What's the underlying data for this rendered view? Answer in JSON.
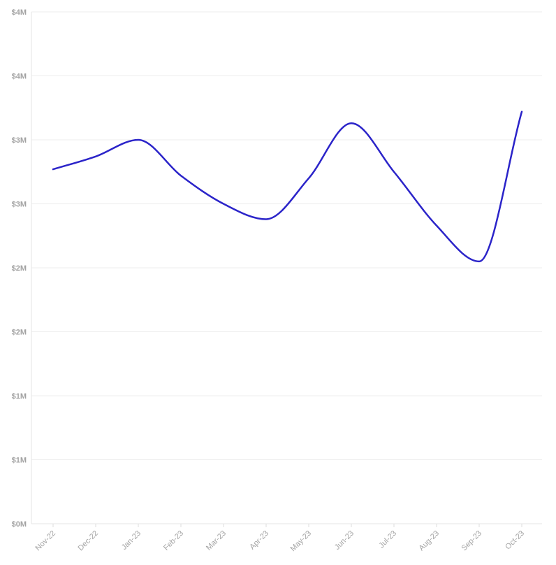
{
  "chart_data": {
    "type": "line",
    "x": [
      "Nov-22",
      "Dec-22",
      "Jan-23",
      "Feb-23",
      "Mar-23",
      "Apr-23",
      "May-23",
      "Jun-23",
      "Jul-23",
      "Aug-23",
      "Sep-23",
      "Oct-23"
    ],
    "series": [
      {
        "values": [
          2770000,
          2870000,
          3000000,
          2720000,
          2500000,
          2380000,
          2700000,
          3130000,
          2750000,
          2330000,
          2050000,
          3220000
        ],
        "color": "#2b24c9"
      }
    ],
    "yticks": [
      0,
      500000,
      1000000,
      1500000,
      2000000,
      2500000,
      3000000,
      3500000,
      4000000
    ],
    "ytick_labels": [
      "$0M",
      "$1M",
      "$1M",
      "$2M",
      "$2M",
      "$3M",
      "$3M",
      "$4M",
      "$4M"
    ],
    "ylim": [
      0,
      4000000
    ],
    "grid": true,
    "title": "",
    "xlabel": "",
    "ylabel": ""
  }
}
